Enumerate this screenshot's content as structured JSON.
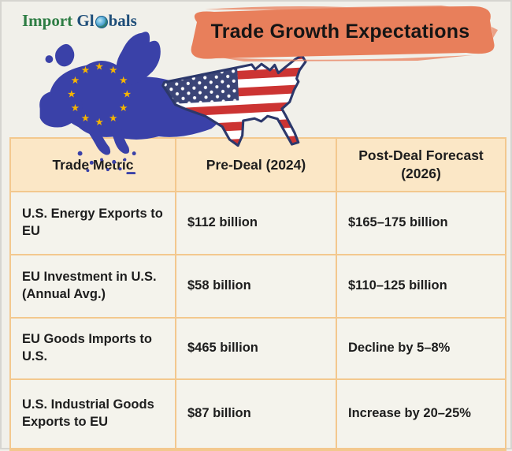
{
  "logo": {
    "part1": "Import",
    "part2": "Gl",
    "part3": "bals"
  },
  "header": {
    "title": "Trade Growth Expectations"
  },
  "graphics": {
    "eu_map_icon": "eu-flag-map",
    "us_map_icon": "us-flag-map"
  },
  "chart_data": {
    "type": "table",
    "title": "Trade Growth Expectations",
    "columns": [
      "Trade Metric",
      "Pre-Deal (2024)",
      "Post-Deal Forecast (2026)"
    ],
    "rows": [
      [
        "U.S. Energy Exports to EU",
        "$112 billion",
        "$165–175 billion"
      ],
      [
        "EU Investment in U.S. (Annual Avg.)",
        "$58 billion",
        "$110–125 billion"
      ],
      [
        "EU Goods Imports to U.S.",
        "$465 billion",
        "Decline by 5–8%"
      ],
      [
        "U.S. Industrial Goods Exports to EU",
        "$87 billion",
        "Increase by 20–25%"
      ]
    ]
  },
  "colors": {
    "page_bg": "#F1F0EA",
    "frame": "#D6D5D0",
    "brush": "#E87F5B",
    "title_text": "#151515",
    "logo_green": "#2E7D44",
    "logo_navy": "#1F4E79",
    "table_header_bg": "#FBE7C6",
    "table_row_bg": "#F4F3EC",
    "table_border": "#F3C88E",
    "cell_text": "#1D1D1D",
    "eu_blue": "#3A41A8",
    "star_gold": "#F7B500",
    "flag_red": "#CC3433",
    "flag_navy": "#3B4577",
    "flag_white": "#FFFFFF",
    "us_outline": "#2C386B"
  }
}
